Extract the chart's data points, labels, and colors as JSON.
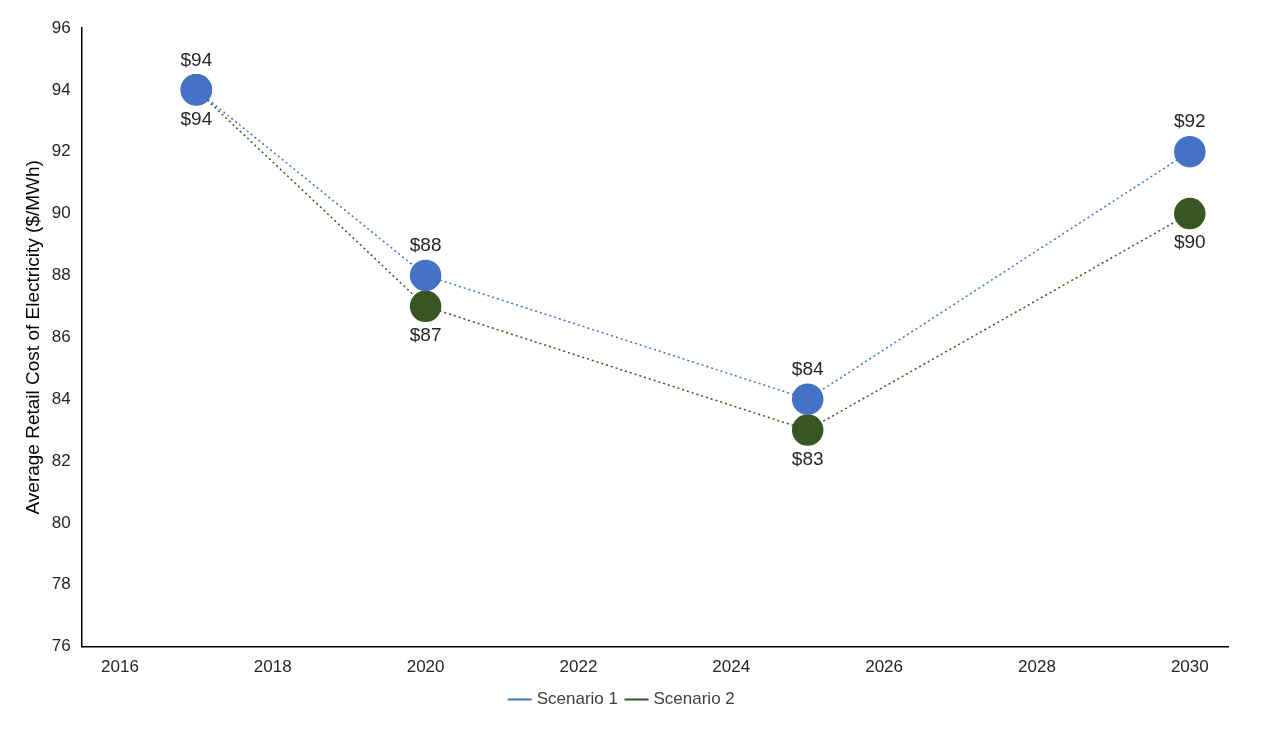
{
  "chart_data": {
    "type": "line",
    "ylabel": "Average Retail Cost of Electricity ($/MWh)",
    "x": [
      2017,
      2020,
      2025,
      2030
    ],
    "xlim": [
      2015.5,
      2030.5
    ],
    "xticks": [
      2016,
      2018,
      2020,
      2022,
      2024,
      2026,
      2028,
      2030
    ],
    "ylim": [
      76,
      96
    ],
    "yticks": [
      76,
      78,
      80,
      82,
      84,
      86,
      88,
      90,
      92,
      94,
      96
    ],
    "series": [
      {
        "name": "Scenario 1",
        "color": "#4472c4",
        "values": [
          94,
          88,
          84,
          92
        ],
        "value_labels": [
          "$94",
          "$88",
          "$84",
          "$92"
        ]
      },
      {
        "name": "Scenario 2",
        "color": "#375623",
        "values": [
          94,
          87,
          83,
          90
        ],
        "value_labels": [
          "$94",
          "$87",
          "$83",
          "$90"
        ]
      }
    ],
    "marker": "circle",
    "line_style": "dotted",
    "grid": false,
    "legend": "bottom"
  }
}
